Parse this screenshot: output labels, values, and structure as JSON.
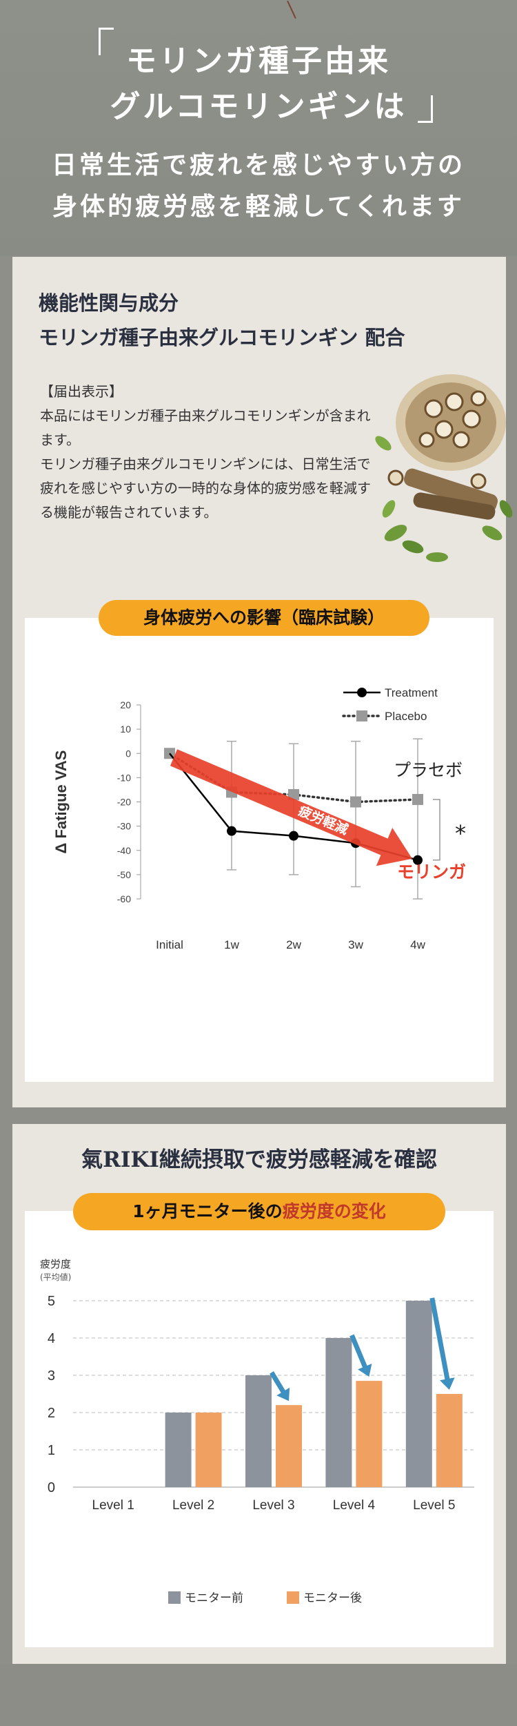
{
  "hero": {
    "line1": "モリンガ種子由来",
    "line2": "グルコモリンギンは",
    "line3": "日常生活で疲れを感じやすい方の",
    "line4": "身体的疲労感を軽減してくれます"
  },
  "functional": {
    "title1": "機能性関与成分",
    "title2": "モリンガ種子由来グルコモリンギン 配合",
    "notice_label": "【届出表示】",
    "notice_text1": "本品にはモリンガ種子由来グルコモリンギンが含まれます。",
    "notice_text2": "モリンガ種子由来グルコモリンギンには、日常生活で疲れを感じやすい方の一時的な身体的疲労感を軽減する機能が報告されています。"
  },
  "clinical": {
    "pill_label": "身体疲労への影響（臨床試験）"
  },
  "monitor": {
    "section_title": "氣RIKI継続摂取で疲労感軽減を確認",
    "pill_prefix": "1ヶ月モニター後の",
    "pill_highlight": "疲労度の変化"
  },
  "chart_data": [
    {
      "type": "line",
      "ylabel": "Δ Fatigue VAS",
      "x": [
        "Initial",
        "1w",
        "2w",
        "3w",
        "4w"
      ],
      "ylim": [
        -60,
        20
      ],
      "yticks": [
        20,
        10,
        0,
        -10,
        -20,
        -30,
        -40,
        -50,
        -60
      ],
      "grid": false,
      "legend": "top-right",
      "series": [
        {
          "name": "Treatment",
          "values": [
            0,
            -32,
            -34,
            -37,
            -44
          ],
          "err_low": [
            0,
            -48,
            -50,
            -55,
            -60
          ],
          "err_high": [
            0,
            5,
            4,
            5,
            6
          ],
          "color": "#000000",
          "marker": "circle",
          "line": "solid"
        },
        {
          "name": "Placebo",
          "values": [
            0,
            -16,
            -17,
            -20,
            -19
          ],
          "color": "#999999",
          "marker": "square",
          "line": "dotted"
        }
      ],
      "annotations": {
        "placebo_label": "プラセボ",
        "moringa_label": "モリンガ",
        "arrow_label": "疲労軽減",
        "significance": "*",
        "accent_color": "#e8402a"
      }
    },
    {
      "type": "bar",
      "ylabel": "疲労度",
      "ylabel_sub": "(平均値)",
      "categories": [
        "Level 1",
        "Level 2",
        "Level 3",
        "Level 4",
        "Level 5"
      ],
      "ylim": [
        0,
        5
      ],
      "yticks": [
        0,
        1,
        2,
        3,
        4,
        5
      ],
      "grid": true,
      "legend": "bottom",
      "series": [
        {
          "name": "モニター前",
          "values": [
            0,
            2,
            3,
            4,
            5
          ],
          "color": "#8d939c"
        },
        {
          "name": "モニター後",
          "values": [
            0,
            2,
            2.2,
            2.85,
            2.5
          ],
          "color": "#f0a060"
        }
      ],
      "arrow_color": "#3d90c0"
    }
  ]
}
